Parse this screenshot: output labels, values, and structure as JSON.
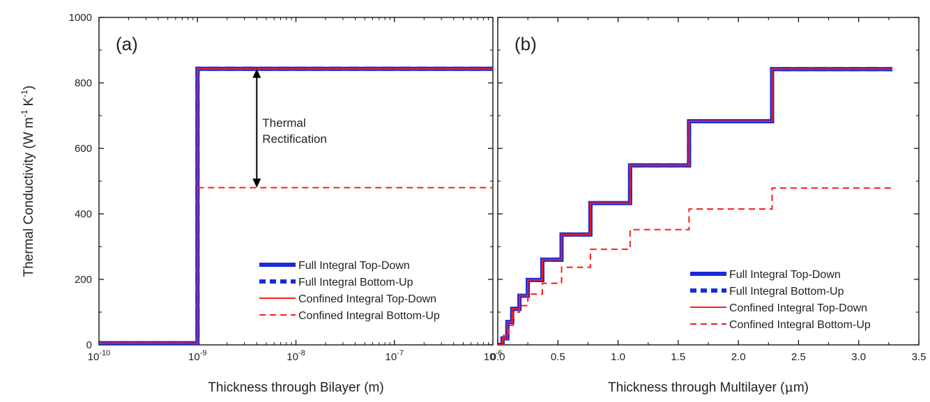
{
  "figure": {
    "ylabel": "Thermal Conductivity (W m",
    "ylabel_unit_sup1": "-1",
    "ylabel_mid": " K",
    "ylabel_unit_sup2": "-1",
    "ylabel_end": ")",
    "colors": {
      "full": "#1a2bd8",
      "confined": "#ff1a1a",
      "arrow": "#000000"
    }
  },
  "chart_data": [
    {
      "panel": "(a)",
      "type": "line",
      "xscale": "log",
      "xlabel": "Thickness through Bilayer (m)",
      "ylabel": "Thermal Conductivity (W m^-1 K^-1)",
      "xlim": [
        1e-10,
        1e-06
      ],
      "ylim": [
        0,
        1000
      ],
      "xticks": [
        {
          "base": "10",
          "exp": "-10",
          "value": 1e-10
        },
        {
          "base": "10",
          "exp": "-9",
          "value": 1e-09
        },
        {
          "base": "10",
          "exp": "-8",
          "value": 1e-08
        },
        {
          "base": "10",
          "exp": "-7",
          "value": 1e-07
        },
        {
          "base": "10",
          "exp": "-6",
          "value": 1e-06
        }
      ],
      "yticks": [
        "0",
        "200",
        "400",
        "600",
        "800",
        "1000"
      ],
      "series": [
        {
          "name": "Full Integral Top-Down",
          "style": "thick-solid",
          "points": [
            [
              1e-10,
              5
            ],
            [
              1e-09,
              5
            ],
            [
              1e-09,
              843
            ],
            [
              1e-06,
              843
            ]
          ]
        },
        {
          "name": "Full Integral Bottom-Up",
          "style": "thick-dashed",
          "points": [
            [
              1e-10,
              5
            ],
            [
              1e-09,
              5
            ],
            [
              1e-09,
              843
            ],
            [
              1e-06,
              843
            ]
          ]
        },
        {
          "name": "Confined Integral Top-Down",
          "style": "thin-solid",
          "points": [
            [
              1e-10,
              5
            ],
            [
              1e-09,
              5
            ],
            [
              1e-09,
              843
            ],
            [
              1e-06,
              843
            ]
          ]
        },
        {
          "name": "Confined Integral Bottom-Up",
          "style": "thin-dashed",
          "points": [
            [
              1e-09,
              480
            ],
            [
              1e-06,
              480
            ]
          ]
        }
      ],
      "annotation": {
        "line1": "Thermal",
        "line2": "Rectification",
        "x": 4e-09,
        "y_from": 480,
        "y_to": 843
      },
      "legend_loc": "lower-right"
    },
    {
      "panel": "(b)",
      "type": "line",
      "xscale": "linear",
      "xlabel_pre": "Thickness through Multilayer (",
      "xlabel_mu": "μ",
      "xlabel_post": "m)",
      "ylabel": "Thermal Conductivity (W m^-1 K^-1)",
      "xlim": [
        0,
        3.5
      ],
      "ylim": [
        0,
        1000
      ],
      "xticks": [
        "0.0",
        "0.5",
        "1.0",
        "1.5",
        "2.0",
        "2.5",
        "3.0",
        "3.5"
      ],
      "yticks": [
        "0",
        "200",
        "400",
        "600",
        "800",
        "1000"
      ],
      "series": [
        {
          "name": "Full Integral Top-Down",
          "style": "thick-solid",
          "steps": [
            [
              0.0,
              0
            ],
            [
              0.04,
              20
            ],
            [
              0.08,
              70
            ],
            [
              0.12,
              110
            ],
            [
              0.18,
              150
            ],
            [
              0.25,
              198
            ],
            [
              0.37,
              260
            ],
            [
              0.53,
              337
            ],
            [
              0.77,
              433
            ],
            [
              1.1,
              548
            ],
            [
              1.59,
              683
            ],
            [
              2.28,
              842
            ],
            [
              3.28,
              842
            ]
          ]
        },
        {
          "name": "Full Integral Bottom-Up",
          "style": "thick-dashed",
          "steps": [
            [
              0.0,
              0
            ],
            [
              0.04,
              20
            ],
            [
              0.08,
              70
            ],
            [
              0.12,
              110
            ],
            [
              0.18,
              150
            ],
            [
              0.25,
              198
            ],
            [
              0.37,
              260
            ],
            [
              0.53,
              337
            ],
            [
              0.77,
              433
            ],
            [
              1.1,
              548
            ],
            [
              1.59,
              683
            ],
            [
              2.28,
              842
            ],
            [
              3.28,
              842
            ]
          ]
        },
        {
          "name": "Confined Integral Top-Down",
          "style": "thin-solid",
          "steps": [
            [
              0.0,
              0
            ],
            [
              0.04,
              20
            ],
            [
              0.08,
              70
            ],
            [
              0.12,
              110
            ],
            [
              0.18,
              150
            ],
            [
              0.25,
              198
            ],
            [
              0.37,
              260
            ],
            [
              0.53,
              337
            ],
            [
              0.77,
              433
            ],
            [
              1.1,
              548
            ],
            [
              1.59,
              683
            ],
            [
              2.28,
              842
            ],
            [
              3.28,
              842
            ]
          ]
        },
        {
          "name": "Confined Integral Bottom-Up",
          "style": "thin-dashed",
          "steps": [
            [
              0.0,
              0
            ],
            [
              0.05,
              30
            ],
            [
              0.09,
              60
            ],
            [
              0.13,
              100
            ],
            [
              0.18,
              120
            ],
            [
              0.25,
              155
            ],
            [
              0.37,
              188
            ],
            [
              0.53,
              237
            ],
            [
              0.77,
              292
            ],
            [
              1.1,
              352
            ],
            [
              1.59,
              415
            ],
            [
              2.28,
              479
            ],
            [
              3.28,
              479
            ]
          ]
        }
      ],
      "legend_loc": "lower-right"
    }
  ]
}
